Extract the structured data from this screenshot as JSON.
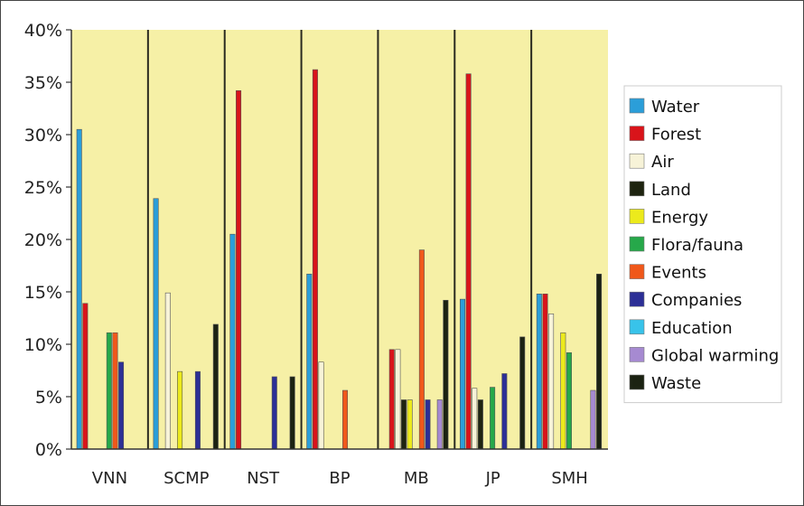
{
  "chart_data": {
    "type": "bar",
    "categories": [
      "VNN",
      "SCMP",
      "NST",
      "BP",
      "MB",
      "JP",
      "SMH"
    ],
    "ylim": [
      0,
      40
    ],
    "y_ticks": [
      "0%",
      "5%",
      "10%",
      "15%",
      "20%",
      "25%",
      "30%",
      "35%",
      "40%"
    ],
    "y_tick_values": [
      0,
      5,
      10,
      15,
      20,
      25,
      30,
      35,
      40
    ],
    "legend_position": "right",
    "plot_background": "#f6f0a6",
    "series": [
      {
        "name": "Water",
        "color": "#2b9ed9",
        "values": [
          30.5,
          23.9,
          20.5,
          16.7,
          0,
          14.3,
          14.8
        ]
      },
      {
        "name": "Forest",
        "color": "#d9141a",
        "values": [
          13.9,
          0,
          34.2,
          36.2,
          9.5,
          35.8,
          14.8
        ]
      },
      {
        "name": "Air",
        "color": "#f7f3d8",
        "values": [
          0,
          14.9,
          0,
          8.3,
          9.5,
          5.8,
          12.9
        ]
      },
      {
        "name": "Land",
        "color": "#1e2410",
        "values": [
          0,
          0,
          0,
          0,
          4.7,
          4.7,
          0
        ]
      },
      {
        "name": "Energy",
        "color": "#ecea1c",
        "values": [
          0,
          7.4,
          0,
          0,
          4.7,
          0,
          11.1
        ]
      },
      {
        "name": "Flora/fauna",
        "color": "#26a84a",
        "values": [
          11.1,
          0,
          0,
          0,
          0,
          5.9,
          9.2
        ]
      },
      {
        "name": "Events",
        "color": "#f0581a",
        "values": [
          11.1,
          0,
          0,
          5.6,
          19.0,
          0,
          0
        ]
      },
      {
        "name": "Companies",
        "color": "#2c2f96",
        "values": [
          8.3,
          7.4,
          6.9,
          0,
          4.7,
          7.2,
          0
        ]
      },
      {
        "name": "Education",
        "color": "#38c3ea",
        "values": [
          0,
          0,
          0,
          0,
          0,
          0,
          0
        ]
      },
      {
        "name": "Global warming",
        "color": "#a68ad1",
        "values": [
          0,
          0,
          0,
          0,
          4.7,
          0,
          5.6
        ]
      },
      {
        "name": "Waste",
        "color": "#1b2212",
        "values": [
          0,
          11.9,
          6.9,
          0,
          14.2,
          10.7,
          16.7
        ]
      }
    ]
  }
}
